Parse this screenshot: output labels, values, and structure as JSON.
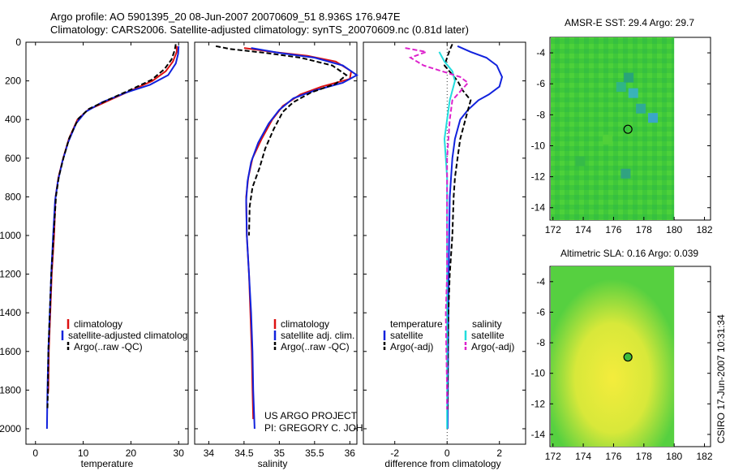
{
  "header": {
    "title_line1": "Argo profile: AO 5901395_20 08-Jun-2007 20070609_51 8.936S 176.947E",
    "title_line2": "Climatology: CARS2006. Satellite-adjusted climatology: synTS_20070609.nc (0.81d later)"
  },
  "credit": {
    "line1": "US ARGO PROJECT",
    "line2": "PI: GREGORY C. JOHNSON"
  },
  "side_label": "CSIRO 17-Jun-2007 10:31:34",
  "colors": {
    "climatology": "#dd1111",
    "satellite": "#1122dd",
    "argo": "#000000",
    "salinity_satellite": "#22dddd",
    "salinity_argo": "#dd22cc"
  },
  "chart_data": [
    {
      "id": "temperature",
      "type": "line",
      "title": "",
      "xlabel": "temperature",
      "ylabel": "",
      "xlim": [
        -2,
        32
      ],
      "ylim": [
        2080,
        0
      ],
      "xticks": [
        0,
        10,
        20,
        30
      ],
      "yticks": [
        0,
        200,
        400,
        600,
        800,
        1000,
        1200,
        1400,
        1600,
        1800,
        2000
      ],
      "legend": [
        "climatology",
        "satellite-adjusted climatolog",
        "Argo(..raw -QC)"
      ],
      "series": [
        {
          "name": "climatology",
          "color": "climatology",
          "style": "solid",
          "points": [
            [
              29.6,
              20
            ],
            [
              29.6,
              50
            ],
            [
              28.8,
              100
            ],
            [
              27.3,
              150
            ],
            [
              24.5,
              200
            ],
            [
              20,
              250
            ],
            [
              15.5,
              300
            ],
            [
              11,
              350
            ],
            [
              8.8,
              400
            ],
            [
              7,
              500
            ],
            [
              5.8,
              600
            ],
            [
              4.8,
              700
            ],
            [
              4.2,
              800
            ],
            [
              3.9,
              1000
            ],
            [
              3.4,
              1200
            ],
            [
              3.1,
              1400
            ],
            [
              2.8,
              1600
            ],
            [
              2.7,
              1800
            ],
            [
              2.6,
              1820
            ]
          ]
        },
        {
          "name": "satellite-adjusted climatolog",
          "color": "satellite",
          "style": "solid",
          "points": [
            [
              30,
              20
            ],
            [
              29.9,
              60
            ],
            [
              29.4,
              110
            ],
            [
              27.8,
              170
            ],
            [
              24,
              220
            ],
            [
              19,
              260
            ],
            [
              14,
              310
            ],
            [
              10.5,
              360
            ],
            [
              8.5,
              420
            ],
            [
              6.8,
              520
            ],
            [
              5.6,
              620
            ],
            [
              4.7,
              720
            ],
            [
              4.1,
              820
            ],
            [
              3.7,
              1000
            ],
            [
              3.3,
              1200
            ],
            [
              3,
              1400
            ],
            [
              2.7,
              1600
            ],
            [
              2.5,
              1800
            ],
            [
              2.4,
              2000
            ]
          ]
        },
        {
          "name": "Argo(..raw -QC)",
          "color": "argo",
          "style": "dashed",
          "points": [
            [
              29.4,
              10
            ],
            [
              29.2,
              40
            ],
            [
              28.5,
              90
            ],
            [
              27,
              140
            ],
            [
              24.3,
              195
            ],
            [
              20,
              245
            ],
            [
              15.5,
              295
            ],
            [
              11.2,
              345
            ],
            [
              9,
              395
            ],
            [
              7.1,
              495
            ],
            [
              5.9,
              595
            ],
            [
              4.9,
              695
            ],
            [
              4.3,
              795
            ],
            [
              3.8,
              1000
            ],
            [
              3.3,
              1200
            ],
            [
              3,
              1400
            ],
            [
              2.7,
              1600
            ],
            [
              2.6,
              1800
            ],
            [
              2.5,
              1900
            ]
          ]
        }
      ]
    },
    {
      "id": "salinity",
      "type": "line",
      "title": "",
      "xlabel": "salinity",
      "ylabel": "",
      "xlim": [
        33.8,
        36.1
      ],
      "ylim": [
        2080,
        0
      ],
      "xticks": [
        34,
        34.5,
        35,
        35.5,
        36
      ],
      "xtick_labels": [
        "34",
        "34.5",
        "35",
        "35.5",
        "36"
      ],
      "legend": [
        "climatology",
        "satellite adj. clim.",
        "Argo(..raw -QC)"
      ],
      "series": [
        {
          "name": "climatology",
          "color": "climatology",
          "style": "solid",
          "points": [
            [
              34.5,
              30
            ],
            [
              34.9,
              50
            ],
            [
              35.4,
              70
            ],
            [
              35.8,
              100
            ],
            [
              36.02,
              150
            ],
            [
              36.0,
              190
            ],
            [
              35.6,
              230
            ],
            [
              35.3,
              270
            ],
            [
              35.05,
              330
            ],
            [
              34.9,
              400
            ],
            [
              34.75,
              500
            ],
            [
              34.62,
              600
            ],
            [
              34.56,
              700
            ],
            [
              34.53,
              800
            ],
            [
              34.54,
              1000
            ],
            [
              34.57,
              1200
            ],
            [
              34.59,
              1400
            ],
            [
              34.61,
              1600
            ],
            [
              34.62,
              1800
            ],
            [
              34.63,
              1950
            ]
          ]
        },
        {
          "name": "satellite adj. clim.",
          "color": "satellite",
          "style": "solid",
          "points": [
            [
              34.6,
              30
            ],
            [
              35,
              55
            ],
            [
              35.5,
              80
            ],
            [
              35.9,
              120
            ],
            [
              36.1,
              170
            ],
            [
              35.9,
              210
            ],
            [
              35.5,
              250
            ],
            [
              35.2,
              290
            ],
            [
              35,
              350
            ],
            [
              34.85,
              420
            ],
            [
              34.7,
              520
            ],
            [
              34.6,
              620
            ],
            [
              34.55,
              720
            ],
            [
              34.53,
              820
            ],
            [
              34.54,
              1000
            ],
            [
              34.57,
              1200
            ],
            [
              34.6,
              1400
            ],
            [
              34.62,
              1600
            ],
            [
              34.63,
              1800
            ],
            [
              34.65,
              2000
            ]
          ]
        },
        {
          "name": "Argo(..raw -QC)",
          "color": "argo",
          "style": "dashed",
          "points": [
            [
              34.1,
              20
            ],
            [
              34.3,
              35
            ],
            [
              34.8,
              55
            ],
            [
              35.3,
              80
            ],
            [
              35.75,
              120
            ],
            [
              35.95,
              170
            ],
            [
              35.8,
              215
            ],
            [
              35.45,
              260
            ],
            [
              35.2,
              310
            ],
            [
              35.05,
              360
            ],
            [
              34.92,
              450
            ],
            [
              34.8,
              550
            ],
            [
              34.72,
              650
            ],
            [
              34.62,
              750
            ],
            [
              34.58,
              850
            ],
            [
              34.57,
              1000
            ]
          ]
        }
      ]
    },
    {
      "id": "difference",
      "type": "line",
      "title": "",
      "xlabel": "difference from climatology",
      "ylabel": "",
      "xlim": [
        -3.2,
        3
      ],
      "ylim": [
        2080,
        0
      ],
      "xticks": [
        -2,
        0,
        2
      ],
      "legend_headers": [
        "temperature",
        "salinity"
      ],
      "legend": [
        "satellite",
        "Argo(-adj)",
        "satellite",
        "Argo(-adj)"
      ],
      "series": [
        {
          "name": "temperature satellite",
          "color": "satellite",
          "style": "solid",
          "points": [
            [
              0.4,
              20
            ],
            [
              0.9,
              50
            ],
            [
              1.5,
              80
            ],
            [
              1.9,
              120
            ],
            [
              2.1,
              180
            ],
            [
              2,
              230
            ],
            [
              1.6,
              270
            ],
            [
              1.2,
              300
            ],
            [
              0.8,
              350
            ],
            [
              0.5,
              400
            ],
            [
              0.3,
              500
            ],
            [
              0.2,
              600
            ],
            [
              0.15,
              700
            ],
            [
              0.1,
              800
            ],
            [
              0.08,
              1000
            ],
            [
              0.06,
              1200
            ],
            [
              0.05,
              1400
            ],
            [
              0.04,
              1600
            ],
            [
              0.03,
              1800
            ],
            [
              0.02,
              2000
            ]
          ]
        },
        {
          "name": "temperature Argo(-adj)",
          "color": "argo",
          "style": "dashed",
          "points": [
            [
              0.2,
              10
            ],
            [
              0.1,
              40
            ],
            [
              0.0,
              80
            ],
            [
              -0.1,
              120
            ],
            [
              0.4,
              200
            ],
            [
              0.6,
              250
            ],
            [
              0.9,
              300
            ],
            [
              0.8,
              350
            ],
            [
              0.7,
              400
            ],
            [
              0.6,
              450
            ],
            [
              0.5,
              500
            ],
            [
              0.4,
              600
            ],
            [
              0.3,
              700
            ],
            [
              0.25,
              800
            ],
            [
              0.2,
              1000
            ],
            [
              0.1,
              1200
            ],
            [
              0.05,
              1400
            ],
            [
              0.03,
              1600
            ],
            [
              0.02,
              1800
            ],
            [
              0.02,
              1900
            ]
          ]
        },
        {
          "name": "salinity satellite",
          "color": "salinity_satellite",
          "style": "solid",
          "points": [
            [
              -0.3,
              50
            ],
            [
              -0.1,
              100
            ],
            [
              0.2,
              150
            ],
            [
              0.3,
              200
            ],
            [
              0.1,
              300
            ],
            [
              0,
              400
            ],
            [
              -0.1,
              500
            ],
            [
              -0.05,
              600
            ],
            [
              0,
              700
            ],
            [
              0,
              800
            ],
            [
              0,
              1000
            ],
            [
              0,
              1200
            ],
            [
              0,
              1400
            ],
            [
              0,
              1600
            ],
            [
              0,
              1800
            ],
            [
              0,
              2000
            ]
          ]
        },
        {
          "name": "salinity Argo(-adj)",
          "color": "salinity_argo",
          "style": "dashed",
          "points": [
            [
              -1.6,
              30
            ],
            [
              -0.8,
              50
            ],
            [
              -1.4,
              80
            ],
            [
              -0.9,
              120
            ],
            [
              0.5,
              180
            ],
            [
              0.8,
              210
            ],
            [
              0.2,
              300
            ],
            [
              0.1,
              400
            ],
            [
              0,
              600
            ],
            [
              0,
              800
            ],
            [
              0,
              1000
            ],
            [
              0,
              1200
            ],
            [
              -0.05,
              1400
            ],
            [
              -0.03,
              1600
            ],
            [
              0,
              1800
            ],
            [
              0,
              1900
            ]
          ]
        }
      ]
    },
    {
      "id": "sst-map",
      "type": "heatmap",
      "title": "AMSR-E SST: 29.4 Argo: 29.7",
      "xlim": [
        171.8,
        182.4
      ],
      "ylim": [
        -14.8,
        -3
      ],
      "xticks": [
        172,
        174,
        176,
        178,
        180,
        182
      ],
      "yticks": [
        -4,
        -6,
        -8,
        -10,
        -12,
        -14
      ],
      "data_extent_x": [
        172,
        180
      ],
      "profile_location": [
        176.947,
        -8.936
      ]
    },
    {
      "id": "sla-map",
      "type": "heatmap",
      "title": "Altimetric SLA: 0.16 Argo: 0.039",
      "xlim": [
        171.8,
        182.4
      ],
      "ylim": [
        -14.8,
        -3
      ],
      "xticks": [
        172,
        174,
        176,
        178,
        180,
        182
      ],
      "yticks": [
        -4,
        -6,
        -8,
        -10,
        -12,
        -14
      ],
      "data_extent_x": [
        172,
        180
      ],
      "profile_location": [
        176.947,
        -8.936
      ]
    }
  ]
}
